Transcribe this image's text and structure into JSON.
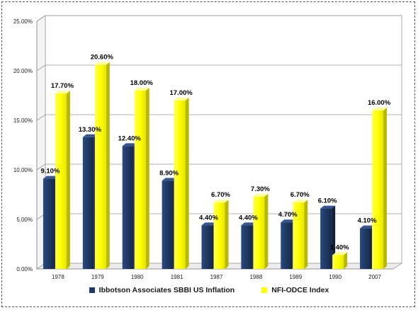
{
  "chart_data": {
    "type": "bar",
    "categories": [
      "1978",
      "1979",
      "1980",
      "1981",
      "1987",
      "1988",
      "1989",
      "1990",
      "2007"
    ],
    "series": [
      {
        "name": "Ibbotson Associates SBBI US Inflation",
        "values": [
          9.1,
          13.3,
          12.4,
          8.9,
          4.4,
          4.4,
          4.7,
          6.1,
          4.1
        ],
        "labels": [
          "9.10%",
          "13.30%",
          "12.40%",
          "8.90%",
          "4.40%",
          "4.40%",
          "4.70%",
          "6.10%",
          "4.10%"
        ],
        "color": "#1f3864"
      },
      {
        "name": "NFI-ODCE Index",
        "values": [
          17.7,
          20.6,
          18.0,
          17.0,
          6.7,
          7.3,
          6.7,
          1.4,
          16.0
        ],
        "labels": [
          "17.70%",
          "20.60%",
          "18.00%",
          "17.00%",
          "6.70%",
          "7.30%",
          "6.70%",
          "1.40%",
          "16.00%"
        ],
        "color": "#ffff00"
      }
    ],
    "y_ticks": [
      "0.00%",
      "5.00%",
      "10.00%",
      "15.00%",
      "20.00%",
      "25.00%"
    ],
    "ylim": [
      0,
      25
    ],
    "grid": true,
    "legend_position": "bottom"
  }
}
